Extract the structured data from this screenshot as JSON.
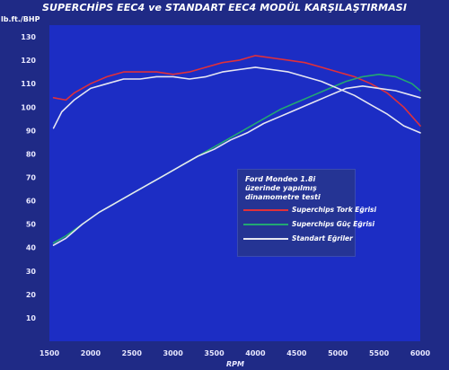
{
  "chart_data": {
    "type": "line",
    "title": "SUPERCHİPS EEC4 ve STANDART EEC4 MODÜL KARŞILAŞTIRMASI",
    "ylabel": "lb.ft./BHP",
    "xlabel": "RPM",
    "x_ticks": [
      "1500",
      "2000",
      "2500",
      "3000",
      "3500",
      "4000",
      "4500",
      "5000",
      "5500",
      "6000"
    ],
    "y_ticks": [
      "10",
      "20",
      "30",
      "40",
      "50",
      "60",
      "70",
      "80",
      "90",
      "100",
      "110",
      "120",
      "130"
    ],
    "xlim": [
      1500,
      6000
    ],
    "ylim": [
      0,
      135
    ],
    "grid": false,
    "legend_position": "center-right",
    "legend_title": "Ford Mondeo 1.8i üzerinde yapılmış dinamometre testi",
    "series": [
      {
        "name": "Superchips Tork Eğrisi",
        "color": "#e0303a",
        "x": [
          1550,
          1700,
          1800,
          2000,
          2200,
          2400,
          2600,
          2800,
          3000,
          3200,
          3400,
          3600,
          3800,
          4000,
          4200,
          4400,
          4600,
          4800,
          5000,
          5200,
          5400,
          5600,
          5800,
          6000
        ],
        "y": [
          104,
          103,
          106,
          110,
          113,
          115,
          115,
          115,
          114,
          115,
          117,
          119,
          120,
          122,
          121,
          120,
          119,
          117,
          115,
          113,
          110,
          106,
          100,
          92
        ]
      },
      {
        "name": "Superchips Güç Eğrisi",
        "color": "#22a872",
        "x": [
          1550,
          1700,
          1900,
          2100,
          2300,
          2500,
          2700,
          2900,
          3100,
          3300,
          3500,
          3700,
          3900,
          4100,
          4300,
          4500,
          4700,
          4900,
          5100,
          5300,
          5500,
          5700,
          5900,
          6000
        ],
        "y": [
          42,
          45,
          50,
          55,
          59,
          63,
          67,
          71,
          75,
          79,
          83,
          87,
          91,
          95,
          99,
          102,
          105,
          108,
          111,
          113,
          114,
          113,
          110,
          107
        ]
      },
      {
        "name": "Standart Eğriler",
        "color": "#e6e6f2",
        "x": [
          1550,
          1650,
          1800,
          2000,
          2200,
          2400,
          2600,
          2800,
          3000,
          3200,
          3400,
          3600,
          3800,
          4000,
          4200,
          4400,
          4600,
          4800,
          5000,
          5200,
          5400,
          5600,
          5800,
          6000
        ],
        "y": [
          91,
          98,
          103,
          108,
          110,
          112,
          112,
          113,
          113,
          112,
          113,
          115,
          116,
          117,
          116,
          115,
          113,
          111,
          108,
          105,
          101,
          97,
          92,
          89
        ]
      },
      {
        "name": "Standart Eğriler",
        "color": "#e6e6f2",
        "x": [
          1550,
          1700,
          1900,
          2100,
          2300,
          2500,
          2700,
          2900,
          3100,
          3300,
          3500,
          3700,
          3900,
          4100,
          4300,
          4500,
          4700,
          4900,
          5100,
          5300,
          5500,
          5700,
          5900,
          6000
        ],
        "y": [
          41,
          44,
          50,
          55,
          59,
          63,
          67,
          71,
          75,
          79,
          82,
          86,
          89,
          93,
          96,
          99,
          102,
          105,
          108,
          109,
          108,
          107,
          105,
          104
        ]
      }
    ]
  }
}
